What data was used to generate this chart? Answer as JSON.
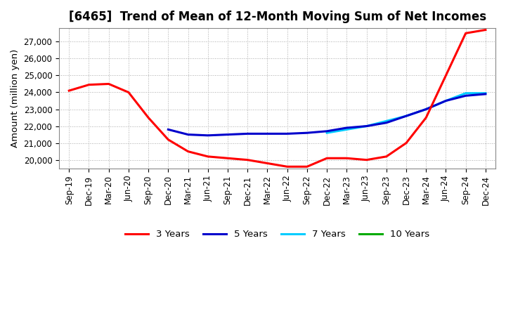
{
  "title": "[6465]  Trend of Mean of 12-Month Moving Sum of Net Incomes",
  "ylabel": "Amount (million yen)",
  "background_color": "#ffffff",
  "plot_bg_color": "#ffffff",
  "grid_color": "#aaaaaa",
  "title_fontsize": 12,
  "label_fontsize": 9.5,
  "tick_fontsize": 8.5,
  "x_labels": [
    "Sep-19",
    "Dec-19",
    "Mar-20",
    "Jun-20",
    "Sep-20",
    "Dec-20",
    "Mar-21",
    "Jun-21",
    "Sep-21",
    "Dec-21",
    "Mar-22",
    "Jun-22",
    "Sep-22",
    "Dec-22",
    "Mar-23",
    "Jun-23",
    "Sep-23",
    "Dec-23",
    "Mar-24",
    "Jun-24",
    "Sep-24",
    "Dec-24"
  ],
  "ylim": [
    19500,
    27800
  ],
  "yticks": [
    20000,
    21000,
    22000,
    23000,
    24000,
    25000,
    26000,
    27000
  ],
  "series": {
    "3y": {
      "color": "#ff0000",
      "label": "3 Years",
      "x": [
        0,
        1,
        2,
        3,
        4,
        5,
        6,
        7,
        8,
        9,
        10,
        11,
        12,
        13,
        14,
        15,
        16,
        17,
        18,
        19,
        20,
        21
      ],
      "y": [
        24100,
        24450,
        24500,
        24000,
        22500,
        21200,
        20500,
        20200,
        20100,
        20000,
        19800,
        19600,
        19600,
        20100,
        20100,
        20000,
        20200,
        21000,
        22500,
        25000,
        27500,
        27700
      ]
    },
    "5y": {
      "color": "#0000cc",
      "label": "5 Years",
      "x": [
        5,
        6,
        7,
        8,
        9,
        10,
        11,
        12,
        13,
        14,
        15,
        16,
        17,
        18,
        19,
        20,
        21
      ],
      "y": [
        21800,
        21500,
        21450,
        21500,
        21550,
        21550,
        21550,
        21600,
        21700,
        21900,
        22000,
        22200,
        22600,
        23000,
        23500,
        23800,
        23900
      ]
    },
    "7y": {
      "color": "#00ccff",
      "label": "7 Years",
      "x": [
        13,
        14,
        15,
        16,
        17,
        18,
        19,
        20,
        21
      ],
      "y": [
        21600,
        21800,
        22000,
        22300,
        22600,
        23000,
        23500,
        23950,
        23950
      ]
    },
    "10y": {
      "color": "#00aa00",
      "label": "10 Years",
      "x": [],
      "y": []
    }
  }
}
